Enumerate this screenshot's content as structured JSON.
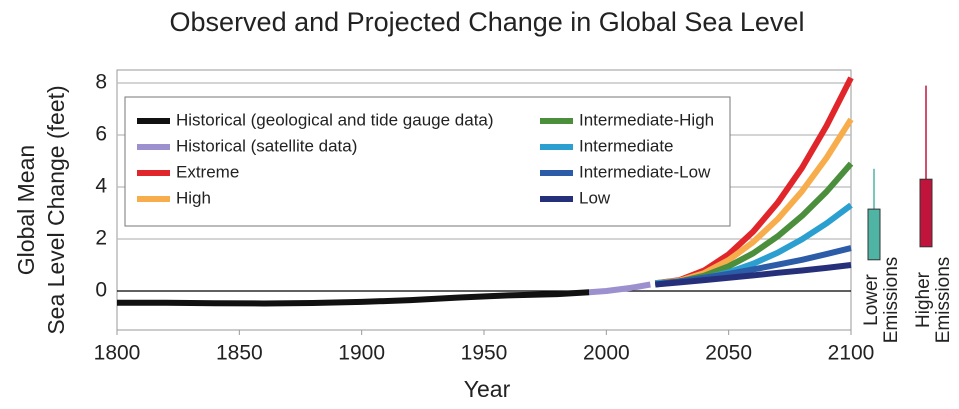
{
  "chart_data": {
    "type": "line",
    "title": "Observed and Projected Change in Global Sea Level",
    "xlabel": "Year",
    "ylabel": [
      "Global Mean",
      "Sea Level Change (feet)"
    ],
    "xlim": [
      1800,
      2100
    ],
    "xticks": [
      1800,
      1850,
      1900,
      1950,
      2000,
      2050,
      2100
    ],
    "ylim": [
      -1.5,
      8.5
    ],
    "yticks": [
      0,
      2,
      4,
      6,
      8
    ],
    "grid": true,
    "series": [
      {
        "name": "Historical (geological and tide gauge data)",
        "color": "#111111",
        "x": [
          1800,
          1820,
          1840,
          1860,
          1880,
          1900,
          1920,
          1940,
          1960,
          1980,
          1993
        ],
        "values": [
          -0.45,
          -0.45,
          -0.47,
          -0.48,
          -0.46,
          -0.42,
          -0.35,
          -0.25,
          -0.17,
          -0.12,
          -0.05
        ]
      },
      {
        "name": "Historical (satellite data)",
        "color": "#9d90cf",
        "x": [
          1993,
          2000,
          2010,
          2018
        ],
        "values": [
          -0.05,
          0.0,
          0.12,
          0.25
        ]
      },
      {
        "name": "Extreme",
        "color": "#e0262a",
        "x": [
          2020,
          2030,
          2040,
          2050,
          2060,
          2070,
          2080,
          2090,
          2100
        ],
        "values": [
          0.3,
          0.42,
          0.79,
          1.41,
          2.28,
          3.39,
          4.74,
          6.35,
          8.2
        ]
      },
      {
        "name": "High",
        "color": "#f7ad4b",
        "x": [
          2020,
          2030,
          2040,
          2050,
          2060,
          2070,
          2080,
          2090,
          2100
        ],
        "values": [
          0.3,
          0.4,
          0.69,
          1.19,
          1.88,
          2.76,
          3.84,
          5.12,
          6.6
        ]
      },
      {
        "name": "Intermediate-High",
        "color": "#4b8f3d",
        "x": [
          2020,
          2030,
          2040,
          2050,
          2060,
          2070,
          2080,
          2090,
          2100
        ],
        "values": [
          0.3,
          0.37,
          0.59,
          0.95,
          1.45,
          2.1,
          2.89,
          3.82,
          4.9
        ]
      },
      {
        "name": "Intermediate",
        "color": "#2b9fcf",
        "x": [
          2020,
          2030,
          2040,
          2050,
          2060,
          2070,
          2080,
          2090,
          2100
        ],
        "values": [
          0.3,
          0.35,
          0.49,
          0.72,
          1.05,
          1.47,
          1.99,
          2.6,
          3.3
        ]
      },
      {
        "name": "Intermediate-Low",
        "color": "#2c5ba8",
        "x": [
          2020,
          2030,
          2040,
          2050,
          2060,
          2070,
          2080,
          2090,
          2100
        ],
        "values": [
          0.25,
          0.37,
          0.51,
          0.66,
          0.83,
          1.01,
          1.2,
          1.42,
          1.65
        ]
      },
      {
        "name": "Low",
        "color": "#26307a",
        "x": [
          2020,
          2030,
          2040,
          2050,
          2060,
          2070,
          2080,
          2090,
          2100
        ],
        "values": [
          0.25,
          0.33,
          0.42,
          0.51,
          0.6,
          0.7,
          0.79,
          0.89,
          1.0
        ]
      }
    ],
    "ranges": [
      {
        "label": [
          "Lower",
          "Emissions"
        ],
        "color": "#50b4a4",
        "box": [
          1.2,
          3.15
        ],
        "whisker": 4.7
      },
      {
        "label": [
          "Higher",
          "Emissions"
        ],
        "color": "#c0143c",
        "box": [
          1.7,
          4.3
        ],
        "whisker": 7.9
      }
    ]
  }
}
